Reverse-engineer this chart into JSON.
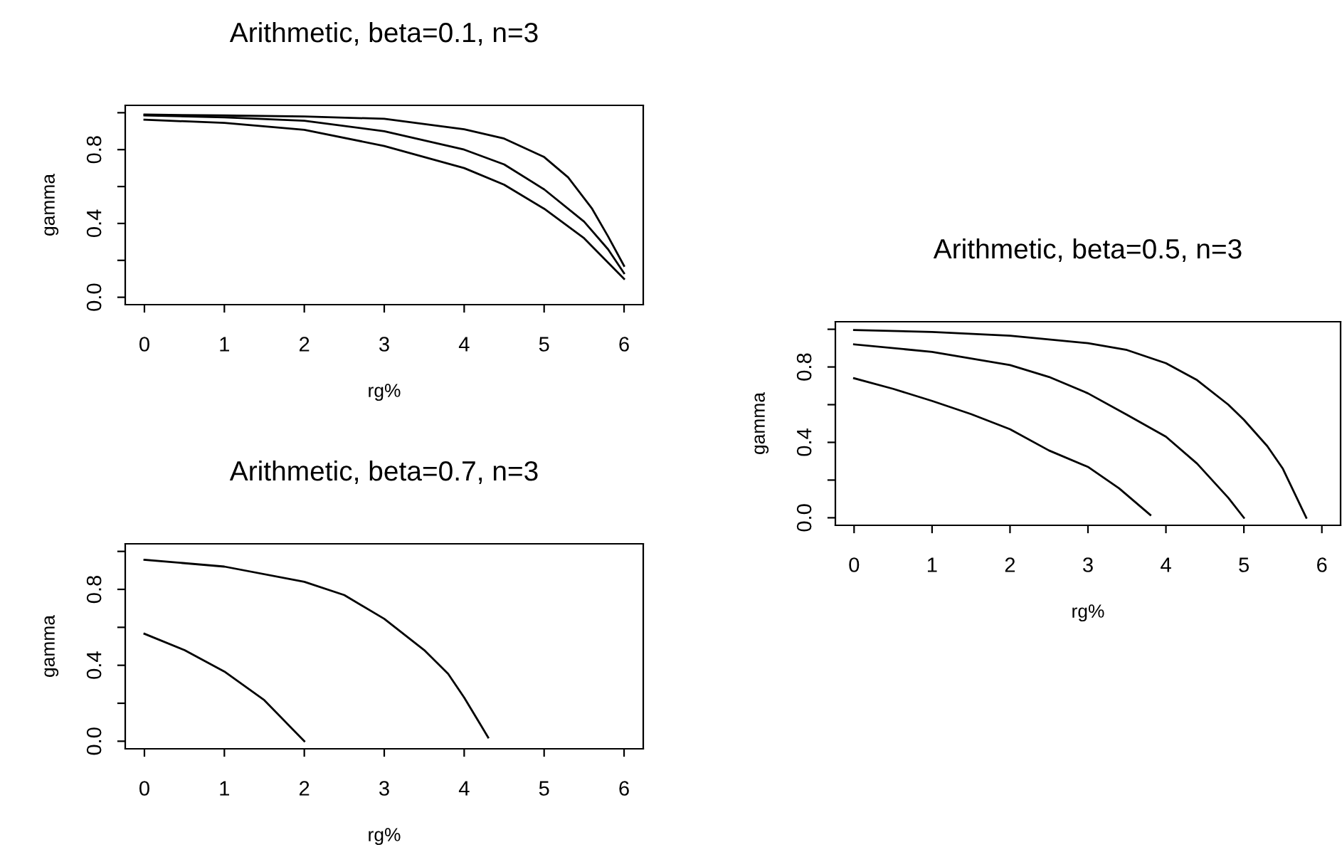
{
  "chart_data": [
    {
      "type": "line",
      "title": "Arithmetic, beta=0.1, n=3",
      "xlabel": "rg%",
      "ylabel": "gamma",
      "xlim": [
        -0.24,
        6.24
      ],
      "ylim": [
        -0.04,
        1.04
      ],
      "xticks": [
        0,
        1,
        2,
        3,
        4,
        5,
        6
      ],
      "yticks": [
        {
          "value": 0,
          "label": "0.0"
        },
        {
          "value": 0.2,
          "label": null
        },
        {
          "value": 0.4,
          "label": "0.4"
        },
        {
          "value": 0.6,
          "label": null
        },
        {
          "value": 0.8,
          "label": "0.8"
        },
        {
          "value": 1.0,
          "label": null
        }
      ],
      "grid": false,
      "legend": false,
      "series": [
        {
          "color": "#000000",
          "x": [
            0,
            1,
            2,
            3,
            4,
            4.5,
            5,
            5.3,
            5.6,
            5.8,
            6
          ],
          "values": [
            0.99,
            0.985,
            0.98,
            0.967,
            0.91,
            0.86,
            0.76,
            0.65,
            0.48,
            0.33,
            0.17
          ]
        },
        {
          "color": "#000000",
          "x": [
            0,
            1,
            2,
            3,
            4,
            4.5,
            5,
            5.5,
            5.8,
            6
          ],
          "values": [
            0.985,
            0.975,
            0.957,
            0.9,
            0.8,
            0.72,
            0.585,
            0.41,
            0.26,
            0.13
          ]
        },
        {
          "color": "#000000",
          "x": [
            0,
            1,
            2,
            3,
            4,
            4.5,
            5,
            5.5,
            6
          ],
          "values": [
            0.962,
            0.945,
            0.907,
            0.82,
            0.7,
            0.61,
            0.48,
            0.32,
            0.1
          ]
        }
      ]
    },
    {
      "type": "line",
      "title": "Arithmetic, beta=0.5, n=3",
      "xlabel": "rg%",
      "ylabel": "gamma",
      "xlim": [
        -0.24,
        6.24
      ],
      "ylim": [
        -0.04,
        1.04
      ],
      "xticks": [
        0,
        1,
        2,
        3,
        4,
        5,
        6
      ],
      "yticks": [
        {
          "value": 0,
          "label": "0.0"
        },
        {
          "value": 0.2,
          "label": null
        },
        {
          "value": 0.4,
          "label": "0.4"
        },
        {
          "value": 0.6,
          "label": null
        },
        {
          "value": 0.8,
          "label": "0.8"
        },
        {
          "value": 1.0,
          "label": null
        }
      ],
      "grid": false,
      "legend": false,
      "series": [
        {
          "color": "#000000",
          "x": [
            0,
            1,
            2,
            3,
            3.5,
            4,
            4.4,
            4.8,
            5,
            5.3,
            5.5,
            5.8
          ],
          "values": [
            0.996,
            0.986,
            0.966,
            0.926,
            0.89,
            0.82,
            0.73,
            0.6,
            0.52,
            0.38,
            0.26,
            0.0
          ]
        },
        {
          "color": "#000000",
          "x": [
            0,
            1,
            2,
            2.5,
            3,
            3.5,
            4,
            4.4,
            4.8,
            5
          ],
          "values": [
            0.92,
            0.88,
            0.81,
            0.747,
            0.66,
            0.546,
            0.43,
            0.287,
            0.106,
            0.0
          ]
        },
        {
          "color": "#000000",
          "x": [
            0,
            0.5,
            1,
            1.5,
            2,
            2.5,
            3,
            3.4,
            3.8
          ],
          "values": [
            0.74,
            0.684,
            0.62,
            0.55,
            0.47,
            0.357,
            0.27,
            0.156,
            0.015
          ]
        }
      ]
    },
    {
      "type": "line",
      "title": "Arithmetic, beta=0.7, n=3",
      "xlabel": "rg%",
      "ylabel": "gamma",
      "xlim": [
        -0.24,
        6.24
      ],
      "ylim": [
        -0.04,
        1.04
      ],
      "xticks": [
        0,
        1,
        2,
        3,
        4,
        5,
        6
      ],
      "yticks": [
        {
          "value": 0,
          "label": "0.0"
        },
        {
          "value": 0.2,
          "label": null
        },
        {
          "value": 0.4,
          "label": "0.4"
        },
        {
          "value": 0.6,
          "label": null
        },
        {
          "value": 0.8,
          "label": "0.8"
        },
        {
          "value": 1.0,
          "label": null
        }
      ],
      "grid": false,
      "legend": false,
      "series": [
        {
          "color": "#000000",
          "x": [
            0,
            1,
            2,
            2.5,
            3,
            3.5,
            3.8,
            4,
            4.2,
            4.3
          ],
          "values": [
            0.956,
            0.92,
            0.84,
            0.77,
            0.645,
            0.48,
            0.355,
            0.23,
            0.09,
            0.02
          ]
        },
        {
          "color": "#000000",
          "x": [
            0,
            0.5,
            1,
            1.5,
            2
          ],
          "values": [
            0.566,
            0.48,
            0.367,
            0.216,
            0.0
          ]
        }
      ]
    }
  ]
}
